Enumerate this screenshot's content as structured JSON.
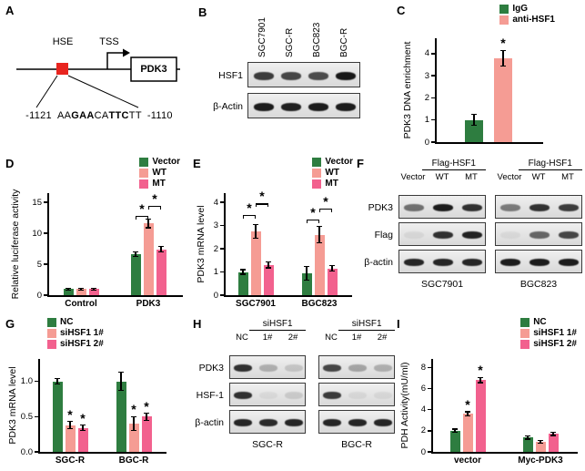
{
  "colors": {
    "green": "#2e7d40",
    "salmon": "#f59c94",
    "pink": "#f2618e",
    "red_box": "#e8251f"
  },
  "panels": {
    "A": {
      "label": "A",
      "hse": "HSE",
      "tss": "TSS",
      "gene": "PDK3",
      "pos_left": "-1121",
      "pos_right": "-1110",
      "seq": {
        "p1": "AA",
        "b1": "GAA",
        "p2": "CA",
        "b2": "TTC",
        "p3": "TT"
      }
    },
    "B": {
      "label": "B",
      "lanes": [
        "SGC7901",
        "SGC-R",
        "BGC823",
        "BGC-R"
      ],
      "rows": [
        {
          "name": "HSF1",
          "bands": [
            0.8,
            0.75,
            0.72,
            0.97
          ]
        },
        {
          "name": "β-Actin",
          "bands": [
            0.95,
            0.93,
            0.95,
            0.95
          ]
        }
      ]
    },
    "C": {
      "label": "C"
    },
    "D": {
      "label": "D"
    },
    "E": {
      "label": "E"
    },
    "F": {
      "label": "F",
      "row_names": [
        "PDK3",
        "Flag",
        "β-actin"
      ],
      "groups": [
        {
          "header": "Flag-HSF1",
          "lanes": [
            "Vector",
            "WT",
            "MT"
          ],
          "bottom": "SGC7901",
          "bands": [
            [
              0.55,
              0.95,
              0.85
            ],
            [
              0.06,
              0.85,
              0.92
            ],
            [
              0.9,
              0.9,
              0.9
            ]
          ]
        },
        {
          "header": "Flag-HSF1",
          "lanes": [
            "Vector",
            "WT",
            "MT"
          ],
          "bottom": "BGC823",
          "bands": [
            [
              0.5,
              0.85,
              0.8
            ],
            [
              0.05,
              0.6,
              0.75
            ],
            [
              0.95,
              0.95,
              0.95
            ]
          ]
        }
      ]
    },
    "G": {
      "label": "G"
    },
    "H": {
      "label": "H",
      "row_names": [
        "PDK3",
        "HSF-1",
        "β-actin"
      ],
      "groups": [
        {
          "header": "siHSF1",
          "lanes": [
            "NC",
            "1#",
            "2#"
          ],
          "bottom": "SGC-R",
          "bands": [
            [
              0.85,
              0.25,
              0.15
            ],
            [
              0.85,
              0.05,
              0.12
            ],
            [
              0.9,
              0.88,
              0.9
            ]
          ]
        },
        {
          "header": "siHSF1",
          "lanes": [
            "NC",
            "1#",
            "2#"
          ],
          "bottom": "BGC-R",
          "bands": [
            [
              0.75,
              0.3,
              0.25
            ],
            [
              0.8,
              0.06,
              0.06
            ],
            [
              0.9,
              0.9,
              0.9
            ]
          ]
        }
      ]
    },
    "I": {
      "label": "I"
    }
  },
  "chart_data": [
    {
      "id": "C",
      "type": "bar",
      "title": "",
      "ylabel": "PDK3 DNA enrichment",
      "ylim": [
        0,
        4.7
      ],
      "yticks": [
        0,
        1,
        2,
        3,
        4
      ],
      "ytick_labels": [
        "0",
        "1",
        "2",
        "3",
        "4"
      ],
      "categories": [
        ""
      ],
      "legend_position": "top-right",
      "series": [
        {
          "name": "IgG",
          "color": "#2e7d40",
          "values": [
            1.0
          ],
          "errors": [
            0.25
          ],
          "sig": [
            false
          ]
        },
        {
          "name": "anti-HSF1",
          "color": "#f59c94",
          "values": [
            3.8
          ],
          "errors": [
            0.35
          ],
          "sig": [
            true
          ]
        }
      ]
    },
    {
      "id": "D",
      "type": "bar",
      "title": "",
      "ylabel": "Relative luciferase activity",
      "ylim": [
        0,
        16.5
      ],
      "yticks": [
        0,
        5,
        10,
        15
      ],
      "ytick_labels": [
        "0",
        "5",
        "10",
        "15"
      ],
      "categories": [
        "Control",
        "PDK3"
      ],
      "legend_position": "top-right",
      "series": [
        {
          "name": "Vector",
          "color": "#2e7d40",
          "values": [
            1.0,
            6.6
          ],
          "errors": [
            0.15,
            0.35
          ],
          "sig": [
            false,
            false
          ]
        },
        {
          "name": "WT",
          "color": "#f59c94",
          "values": [
            1.0,
            11.6
          ],
          "errors": [
            0.15,
            0.7
          ],
          "sig": [
            false,
            false
          ]
        },
        {
          "name": "MT",
          "color": "#f2618e",
          "values": [
            1.0,
            7.4
          ],
          "errors": [
            0.15,
            0.45
          ],
          "sig": [
            false,
            false
          ]
        }
      ],
      "brackets": [
        {
          "cat": 1,
          "from": 0,
          "to": 1,
          "y": 12.8,
          "label": "*"
        },
        {
          "cat": 1,
          "from": 1,
          "to": 2,
          "y": 14.4,
          "label": "*"
        }
      ]
    },
    {
      "id": "E",
      "type": "bar",
      "title": "",
      "ylabel": "PDK3 mRNA level",
      "ylim": [
        0,
        4.4
      ],
      "yticks": [
        0,
        1,
        2,
        3,
        4
      ],
      "ytick_labels": [
        "0",
        "1",
        "2",
        "3",
        "4"
      ],
      "categories": [
        "SGC7901",
        "BGC823"
      ],
      "legend_position": "top-right",
      "series": [
        {
          "name": "Vector",
          "color": "#2e7d40",
          "values": [
            1.0,
            0.95
          ],
          "errors": [
            0.1,
            0.3
          ],
          "sig": [
            false,
            false
          ]
        },
        {
          "name": "WT",
          "color": "#f59c94",
          "values": [
            2.75,
            2.6
          ],
          "errors": [
            0.3,
            0.35
          ],
          "sig": [
            false,
            false
          ]
        },
        {
          "name": "MT",
          "color": "#f2618e",
          "values": [
            1.3,
            1.15
          ],
          "errors": [
            0.12,
            0.12
          ],
          "sig": [
            false,
            false
          ]
        }
      ],
      "brackets": [
        {
          "cat": 0,
          "from": 0,
          "to": 1,
          "y": 3.45,
          "label": "*"
        },
        {
          "cat": 0,
          "from": 1,
          "to": 2,
          "y": 3.95,
          "label": "*"
        },
        {
          "cat": 1,
          "from": 0,
          "to": 1,
          "y": 3.25,
          "label": "*"
        },
        {
          "cat": 1,
          "from": 1,
          "to": 2,
          "y": 3.75,
          "label": "*"
        }
      ]
    },
    {
      "id": "G",
      "type": "bar",
      "title": "",
      "ylabel": "PDK3 mRNA level",
      "ylim": [
        0,
        1.32
      ],
      "yticks": [
        0,
        0.5,
        1.0
      ],
      "ytick_labels": [
        "0.0",
        "0.5",
        "1.0"
      ],
      "categories": [
        "SGC-R",
        "BGC-R"
      ],
      "legend_position": "top-center",
      "series": [
        {
          "name": "NC",
          "color": "#2e7d40",
          "values": [
            1.0,
            1.0
          ],
          "errors": [
            0.04,
            0.13
          ],
          "sig": [
            false,
            false
          ]
        },
        {
          "name": "siHSF1 1#",
          "color": "#f59c94",
          "values": [
            0.38,
            0.4
          ],
          "errors": [
            0.05,
            0.1
          ],
          "sig": [
            true,
            true
          ]
        },
        {
          "name": "siHSF1 2#",
          "color": "#f2618e",
          "values": [
            0.34,
            0.5
          ],
          "errors": [
            0.04,
            0.05
          ],
          "sig": [
            true,
            true
          ]
        }
      ]
    },
    {
      "id": "I",
      "type": "bar",
      "title": "",
      "ylabel": "PDH Activity(mU/ml)",
      "ylim": [
        0,
        8.8
      ],
      "yticks": [
        0,
        2,
        4,
        6,
        8
      ],
      "ytick_labels": [
        "0",
        "2",
        "4",
        "6",
        "8"
      ],
      "categories": [
        "vector",
        "Myc-PDK3"
      ],
      "legend_position": "top-right",
      "series": [
        {
          "name": "NC",
          "color": "#2e7d40",
          "values": [
            2.0,
            1.35
          ],
          "errors": [
            0.15,
            0.15
          ],
          "sig": [
            false,
            false
          ]
        },
        {
          "name": "siHSF1 1#",
          "color": "#f59c94",
          "values": [
            3.6,
            0.95
          ],
          "errors": [
            0.2,
            0.1
          ],
          "sig": [
            true,
            false
          ]
        },
        {
          "name": "siHSF1 2#",
          "color": "#f2618e",
          "values": [
            6.8,
            1.7
          ],
          "errors": [
            0.25,
            0.15
          ],
          "sig": [
            true,
            false
          ]
        }
      ]
    }
  ]
}
